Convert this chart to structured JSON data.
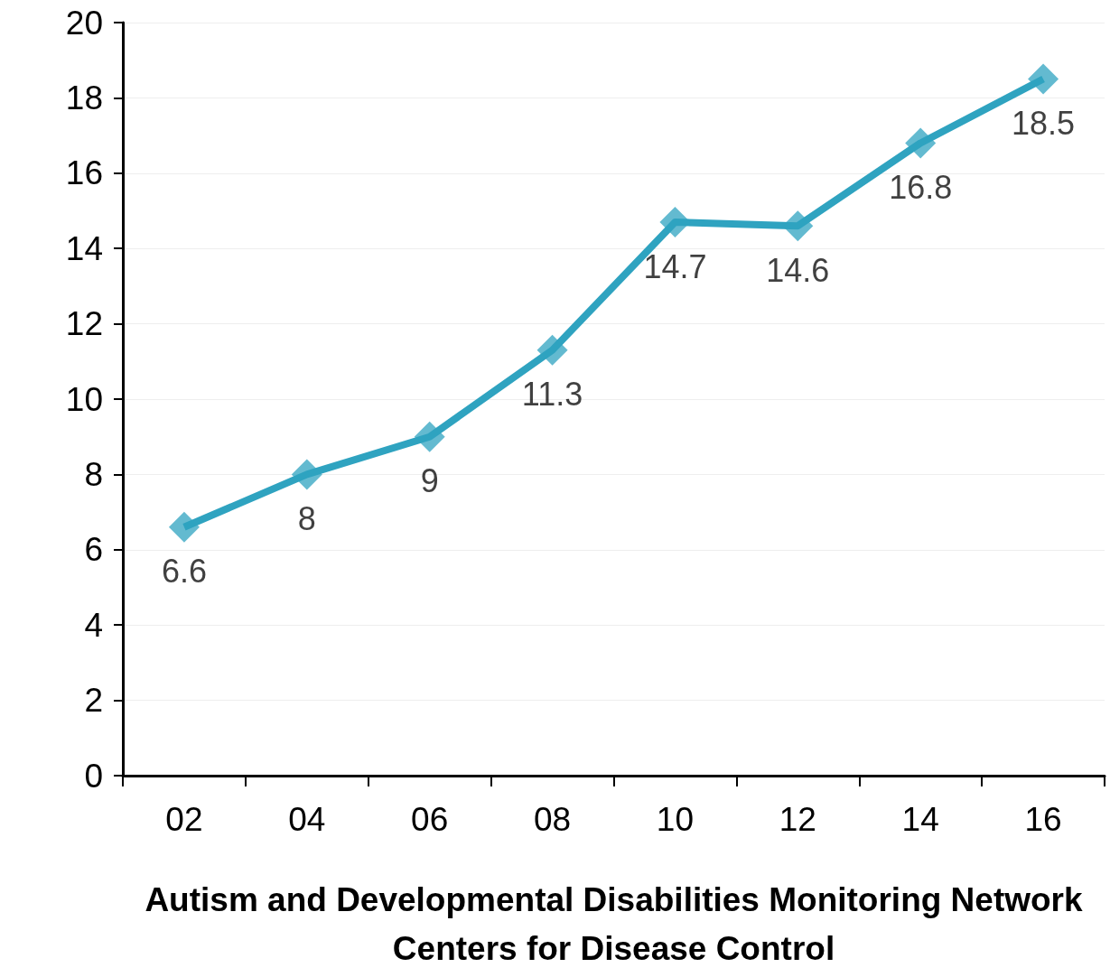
{
  "chart_data": {
    "type": "line",
    "xlabel": "Autism and Developmental Disabilities Monitoring Network\nCenters for Disease Control",
    "categories": [
      "02",
      "04",
      "06",
      "08",
      "10",
      "12",
      "14",
      "16"
    ],
    "series": [
      {
        "color": "#2fa3c0",
        "values": [
          6.6,
          8,
          9,
          11.3,
          14.7,
          14.6,
          16.8,
          18.5
        ]
      }
    ],
    "ylim": [
      0,
      20
    ],
    "yticks": [
      0,
      2,
      4,
      6,
      8,
      10,
      12,
      14,
      16,
      18,
      20
    ],
    "grid": "y",
    "marker": "diamond",
    "data_labels": true
  }
}
